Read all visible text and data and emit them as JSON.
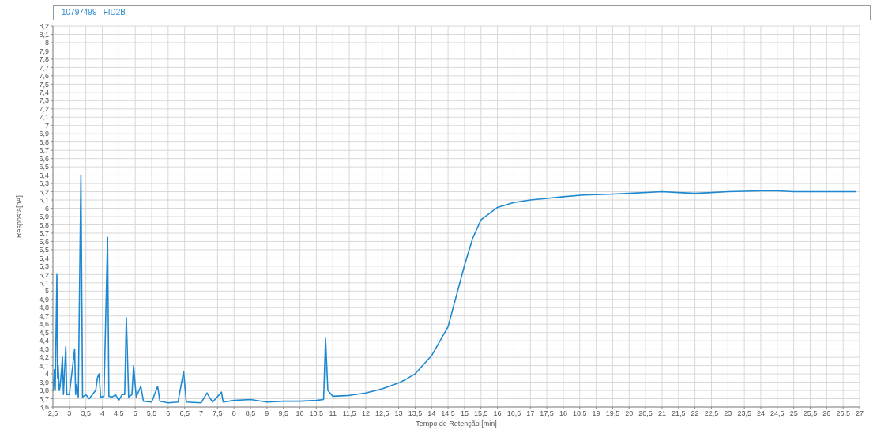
{
  "chart_data": {
    "type": "line",
    "title": "10797499 | FID2B",
    "xlabel": "Tempo de Retenção [min]",
    "ylabel": "Resposta[pA]",
    "xlim": [
      2.5,
      27
    ],
    "ylim": [
      3.6,
      8.2
    ],
    "grid": true,
    "legend": false,
    "marker": "none",
    "line_style": "solid",
    "xticks": [
      {
        "value": 2.5,
        "label": "2,5"
      },
      3,
      {
        "value": 3.5,
        "label": "3,5"
      },
      4,
      {
        "value": 4.5,
        "label": "4,5"
      },
      5,
      {
        "value": 5.5,
        "label": "5,5"
      },
      6,
      {
        "value": 6.5,
        "label": "6,5"
      },
      7,
      {
        "value": 7.5,
        "label": "7,5"
      },
      8,
      {
        "value": 8.5,
        "label": "8,5"
      },
      9,
      {
        "value": 9.5,
        "label": "9,5"
      },
      10,
      {
        "value": 10.5,
        "label": "10,5"
      },
      11,
      {
        "value": 11.5,
        "label": "11,5"
      },
      12,
      {
        "value": 12.5,
        "label": "12,5"
      },
      13,
      {
        "value": 13.5,
        "label": "13,5"
      },
      14,
      {
        "value": 14.5,
        "label": "14,5"
      },
      15,
      {
        "value": 15.5,
        "label": "15,5"
      },
      16,
      {
        "value": 16.5,
        "label": "16,5"
      },
      17,
      {
        "value": 17.5,
        "label": "17,5"
      },
      18,
      {
        "value": 18.5,
        "label": "18,5"
      },
      19,
      {
        "value": 19.5,
        "label": "19,5"
      },
      20,
      {
        "value": 20.5,
        "label": "20,5"
      },
      21,
      {
        "value": 21.5,
        "label": "21,5"
      },
      22,
      {
        "value": 22.5,
        "label": "22,5"
      },
      23,
      {
        "value": 23.5,
        "label": "23,5"
      },
      24,
      {
        "value": 24.5,
        "label": "24,5"
      },
      25,
      {
        "value": 25.5,
        "label": "25,5"
      },
      26,
      {
        "value": 26.5,
        "label": "26,5"
      },
      27
    ],
    "yticks": [
      {
        "value": 3.6,
        "label": "3,6"
      },
      {
        "value": 3.7,
        "label": "3,7"
      },
      {
        "value": 3.8,
        "label": "3,8"
      },
      {
        "value": 3.9,
        "label": "3,9"
      },
      4,
      {
        "value": 4.1,
        "label": "4,1"
      },
      {
        "value": 4.2,
        "label": "4,2"
      },
      {
        "value": 4.3,
        "label": "4,3"
      },
      {
        "value": 4.4,
        "label": "4,4"
      },
      {
        "value": 4.5,
        "label": "4,5"
      },
      {
        "value": 4.6,
        "label": "4,6"
      },
      {
        "value": 4.7,
        "label": "4,7"
      },
      {
        "value": 4.8,
        "label": "4,8"
      },
      {
        "value": 4.9,
        "label": "4,9"
      },
      5,
      {
        "value": 5.1,
        "label": "5,1"
      },
      {
        "value": 5.2,
        "label": "5,2"
      },
      {
        "value": 5.3,
        "label": "5,3"
      },
      {
        "value": 5.4,
        "label": "5,4"
      },
      {
        "value": 5.5,
        "label": "5,5"
      },
      {
        "value": 5.6,
        "label": "5,6"
      },
      {
        "value": 5.7,
        "label": "5,7"
      },
      {
        "value": 5.8,
        "label": "5,8"
      },
      {
        "value": 5.9,
        "label": "5,9"
      },
      6,
      {
        "value": 6.1,
        "label": "6,1"
      },
      {
        "value": 6.2,
        "label": "6,2"
      },
      {
        "value": 6.3,
        "label": "6,3"
      },
      {
        "value": 6.4,
        "label": "6,4"
      },
      {
        "value": 6.5,
        "label": "6,5"
      },
      {
        "value": 6.6,
        "label": "6,6"
      },
      {
        "value": 6.7,
        "label": "6,7"
      },
      {
        "value": 6.8,
        "label": "6,8"
      },
      {
        "value": 6.9,
        "label": "6,9"
      },
      7,
      {
        "value": 7.1,
        "label": "7,1"
      },
      {
        "value": 7.2,
        "label": "7,2"
      },
      {
        "value": 7.3,
        "label": "7,3"
      },
      {
        "value": 7.4,
        "label": "7,4"
      },
      {
        "value": 7.5,
        "label": "7,5"
      },
      {
        "value": 7.6,
        "label": "7,6"
      },
      {
        "value": 7.7,
        "label": "7,7"
      },
      {
        "value": 7.8,
        "label": "7,8"
      },
      {
        "value": 7.9,
        "label": "7,9"
      },
      8,
      {
        "value": 8.1,
        "label": "8,1"
      },
      {
        "value": 8.2,
        "label": "8,2"
      }
    ],
    "x": [
      2.5,
      2.52,
      2.54,
      2.57,
      2.62,
      2.64,
      2.66,
      2.69,
      2.72,
      2.79,
      2.82,
      2.89,
      2.92,
      3.0,
      3.16,
      3.19,
      3.22,
      3.27,
      3.35,
      3.4,
      3.5,
      3.6,
      3.8,
      3.85,
      3.9,
      3.95,
      4.05,
      4.16,
      4.2,
      4.3,
      4.4,
      4.5,
      4.6,
      4.68,
      4.73,
      4.8,
      4.9,
      4.95,
      5.03,
      5.17,
      5.25,
      5.5,
      5.68,
      5.75,
      6.0,
      6.3,
      6.47,
      6.55,
      7.0,
      7.18,
      7.25,
      7.35,
      7.62,
      7.67,
      8.0,
      8.5,
      9.0,
      9.5,
      10.0,
      10.5,
      10.72,
      10.78,
      10.85,
      11.0,
      11.5,
      12.0,
      12.5,
      13.0,
      13.2,
      13.5,
      14.0,
      14.5,
      15.0,
      15.25,
      15.5,
      16.0,
      16.5,
      17.0,
      17.5,
      18.0,
      18.6,
      19.4,
      20.0,
      21.0,
      21.5,
      22.0,
      22.5,
      23.0,
      24.0,
      24.5,
      25.0,
      26.0,
      26.9
    ],
    "series": [
      {
        "color": "#1e88d0",
        "values": [
          3.95,
          3.8,
          4.05,
          3.8,
          5.2,
          3.95,
          4.1,
          3.8,
          3.85,
          4.2,
          3.75,
          4.33,
          3.75,
          3.75,
          4.3,
          3.75,
          3.87,
          3.72,
          6.4,
          3.72,
          3.75,
          3.7,
          3.8,
          3.95,
          4.0,
          3.72,
          3.73,
          5.65,
          3.73,
          3.72,
          3.75,
          3.68,
          3.75,
          3.75,
          4.68,
          3.72,
          3.75,
          4.1,
          3.72,
          3.85,
          3.67,
          3.66,
          3.85,
          3.67,
          3.65,
          3.66,
          4.03,
          3.66,
          3.65,
          3.77,
          3.72,
          3.66,
          3.78,
          3.66,
          3.68,
          3.69,
          3.66,
          3.67,
          3.67,
          3.68,
          3.69,
          4.43,
          3.8,
          3.73,
          3.74,
          3.77,
          3.82,
          3.89,
          3.93,
          4.0,
          4.22,
          4.57,
          5.31,
          5.64,
          5.86,
          6.01,
          6.07,
          6.1,
          6.12,
          6.14,
          6.16,
          6.17,
          6.18,
          6.2,
          6.19,
          6.18,
          6.19,
          6.2,
          6.21,
          6.21,
          6.2,
          6.2,
          6.2
        ]
      }
    ]
  }
}
